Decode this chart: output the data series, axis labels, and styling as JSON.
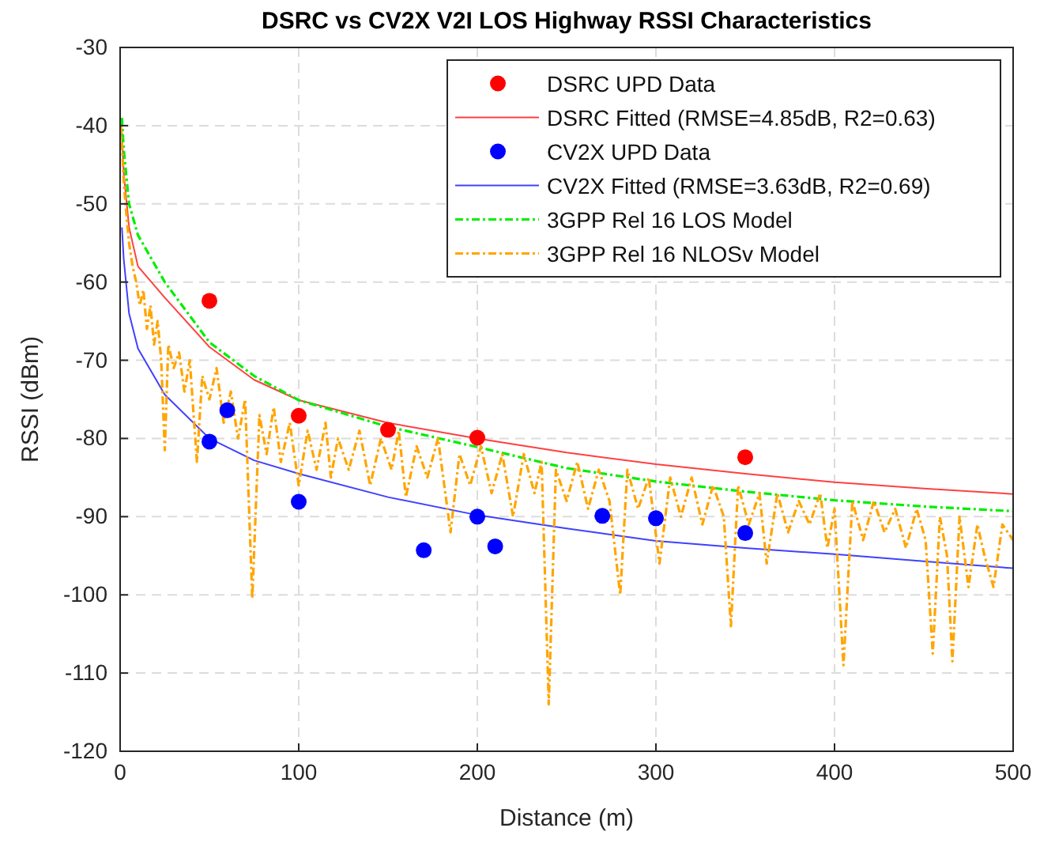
{
  "chart_data": {
    "type": "scatter",
    "title": "DSRC vs CV2X V2I LOS Highway RSSI Characteristics",
    "xlabel": "Distance (m)",
    "ylabel": "RSSI (dBm)",
    "xlim": [
      0,
      500
    ],
    "xticks": [
      0,
      100,
      200,
      300,
      400,
      500
    ],
    "ylim": [
      -120,
      -30
    ],
    "yticks": [
      -120,
      -110,
      -100,
      -90,
      -80,
      -70,
      -60,
      -50,
      -40,
      -30
    ],
    "grid": true,
    "legend": "top right",
    "series": [
      {
        "name": "DSRC UPD Data",
        "marker": "circle",
        "color": "#ff0000",
        "x": [
          50,
          100,
          150,
          200,
          350
        ],
        "values": [
          -62.4,
          -77.1,
          -78.9,
          -79.9,
          -82.4
        ]
      },
      {
        "name": "DSRC Fitted (RMSE=4.85dB, R2=0.63)",
        "type": "line",
        "line_style": "solid",
        "color": "#ff4040",
        "x": [
          1,
          2,
          5,
          10,
          25,
          50,
          75,
          100,
          150,
          200,
          250,
          300,
          350,
          400,
          450,
          500
        ],
        "values": [
          -41,
          -46,
          -53,
          -58,
          -62,
          -68.3,
          -72.5,
          -75.1,
          -78,
          -80,
          -81.8,
          -83.3,
          -84.5,
          -85.6,
          -86.4,
          -87.1
        ]
      },
      {
        "name": "CV2X UPD Data",
        "marker": "circle",
        "color": "#0000ff",
        "x": [
          50,
          60,
          100,
          170,
          200,
          210,
          270,
          300,
          350
        ],
        "values": [
          -80.4,
          -76.4,
          -88.1,
          -94.3,
          -90,
          -93.8,
          -89.9,
          -90.2,
          -92.1
        ]
      },
      {
        "name": "CV2X Fitted (RMSE=3.63dB, R2=0.69)",
        "type": "line",
        "line_style": "solid",
        "color": "#4040ff",
        "x": [
          1,
          2,
          5,
          10,
          25,
          50,
          75,
          100,
          150,
          200,
          250,
          300,
          350,
          400,
          450,
          500
        ],
        "values": [
          -53,
          -57,
          -64,
          -68.5,
          -74.4,
          -80,
          -82.8,
          -84.5,
          -87.5,
          -89.8,
          -91.5,
          -93.1,
          -94,
          -94.8,
          -95.7,
          -96.6
        ]
      },
      {
        "name": "3GPP Rel 16 LOS Model",
        "type": "line",
        "line_style": "dashed",
        "color": "#00ee00",
        "x": [
          1,
          2,
          5,
          10,
          25,
          50,
          75,
          100,
          150,
          200,
          250,
          300,
          350,
          400,
          450,
          500
        ],
        "values": [
          -39,
          -43,
          -50,
          -54,
          -60,
          -67.7,
          -72,
          -75.1,
          -78.5,
          -81.1,
          -83.8,
          -85.5,
          -86.8,
          -87.9,
          -88.7,
          -89.3
        ]
      },
      {
        "name": "3GPP Rel 16 NLOSv Model",
        "type": "line",
        "line_style": "dashed",
        "color": "#ffa500",
        "x": [
          0.5,
          1,
          2,
          3,
          5,
          7,
          9,
          11,
          13,
          15,
          17,
          19,
          21,
          23,
          25,
          27,
          30,
          33,
          36,
          39,
          43,
          46,
          50,
          54,
          58,
          62,
          66,
          70,
          74,
          78,
          82,
          86,
          90,
          95,
          100,
          105,
          110,
          115,
          118,
          122,
          128,
          134,
          140,
          146,
          152,
          156,
          160,
          166,
          172,
          178,
          185,
          190,
          196,
          202,
          208,
          214,
          220,
          226,
          232,
          236,
          240,
          244,
          250,
          256,
          262,
          268,
          274,
          280,
          284,
          290,
          296,
          302,
          308,
          314,
          320,
          326,
          332,
          338,
          342,
          346,
          352,
          358,
          362,
          368,
          374,
          380,
          386,
          392,
          396,
          400,
          405,
          410,
          416,
          422,
          428,
          434,
          440,
          446,
          451,
          455,
          459,
          463,
          466,
          470,
          475,
          480,
          484,
          489,
          494,
          500
        ],
        "values": [
          -40,
          -42,
          -47,
          -50,
          -55,
          -58,
          -60,
          -63,
          -61,
          -66,
          -63,
          -68,
          -65,
          -70,
          -81.5,
          -68,
          -71,
          -69,
          -74,
          -70,
          -83,
          -72,
          -75,
          -71,
          -78,
          -74,
          -80,
          -75,
          -100.5,
          -77,
          -82,
          -76,
          -83,
          -78,
          -86,
          -79,
          -84,
          -78,
          -85,
          -80,
          -84,
          -79,
          -86,
          -80,
          -84,
          -79,
          -87.5,
          -81,
          -85,
          -80,
          -92,
          -82,
          -86,
          -81,
          -87,
          -82,
          -90,
          -82,
          -87,
          -83,
          -114,
          -84,
          -88,
          -83,
          -89,
          -84,
          -88,
          -100,
          -84,
          -89,
          -85,
          -96,
          -85,
          -90,
          -85,
          -91,
          -86,
          -90,
          -104,
          -86,
          -91,
          -87,
          -96,
          -87,
          -92,
          -88,
          -91,
          -87,
          -94,
          -89,
          -109,
          -88,
          -93,
          -88,
          -92,
          -89,
          -94,
          -89,
          -93,
          -107.5,
          -90,
          -95,
          -108.5,
          -90,
          -99,
          -91,
          -95,
          -99,
          -91,
          -93
        ]
      }
    ]
  }
}
